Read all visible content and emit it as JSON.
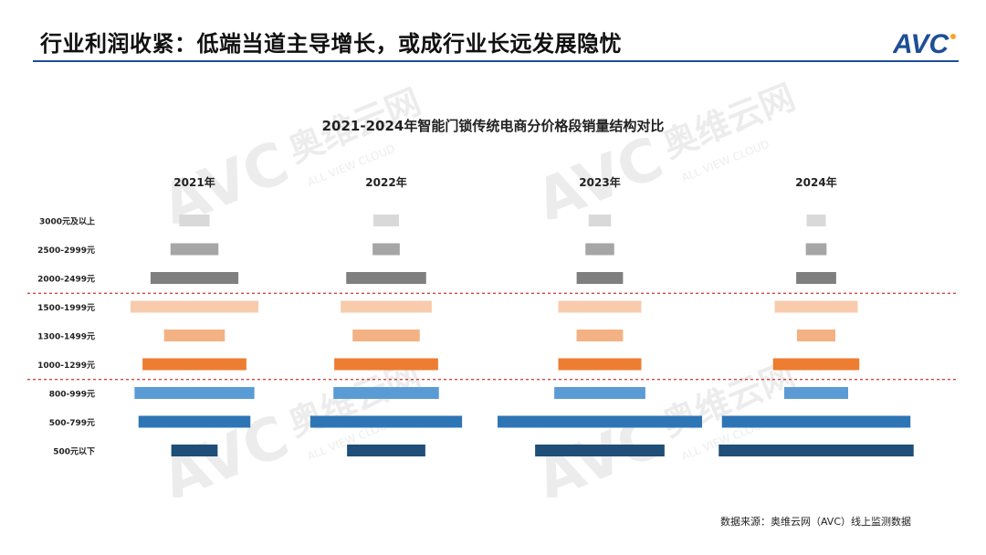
{
  "page": {
    "title": "行业利润收紧：低端当道主导增长，或成行业长远发展隐忧",
    "logo_text": "AVC",
    "source": "数据来源：奥维云网（AVC）线上监测数据",
    "brand_color": "#1f4e96",
    "watermark_brand": "奥维云网",
    "watermark_text": "ALL VIEW CLOUD"
  },
  "chart_data": {
    "type": "bar",
    "subtype": "centered-funnel-bars",
    "title": "2021-2024年智能门锁传统电商分价格段销量结构对比",
    "panels": [
      "2021年",
      "2022年",
      "2023年",
      "2024年"
    ],
    "categories": [
      "3000元及以上",
      "2500-2999元",
      "2000-2499元",
      "1500-1999元",
      "1300-1499元",
      "1000-1299元",
      "800-999元",
      "500-799元",
      "500元以下"
    ],
    "category_colors": [
      "#d9d9d9",
      "#a6a6a6",
      "#7f7f7f",
      "#f8cbad",
      "#f4b183",
      "#ed7d31",
      "#5b9bd5",
      "#2e75b6",
      "#1f4e79"
    ],
    "dividers_after": [
      "2000-2499元",
      "1000-1299元"
    ],
    "divider_color": "#c00000",
    "value_unit": "relative share",
    "series": [
      {
        "name": "2021年",
        "values": [
          1.9,
          3.0,
          5.5,
          8.0,
          3.8,
          6.5,
          7.5,
          7.0,
          2.9
        ]
      },
      {
        "name": "2022年",
        "values": [
          1.6,
          1.7,
          5.0,
          5.7,
          4.2,
          6.5,
          6.6,
          9.5,
          4.9
        ]
      },
      {
        "name": "2023年",
        "values": [
          1.4,
          1.8,
          2.9,
          5.2,
          2.9,
          5.2,
          5.7,
          12.8,
          8.1
        ]
      },
      {
        "name": "2024年",
        "values": [
          1.2,
          1.3,
          2.5,
          5.2,
          2.4,
          5.4,
          4.0,
          11.8,
          12.2
        ]
      }
    ]
  }
}
